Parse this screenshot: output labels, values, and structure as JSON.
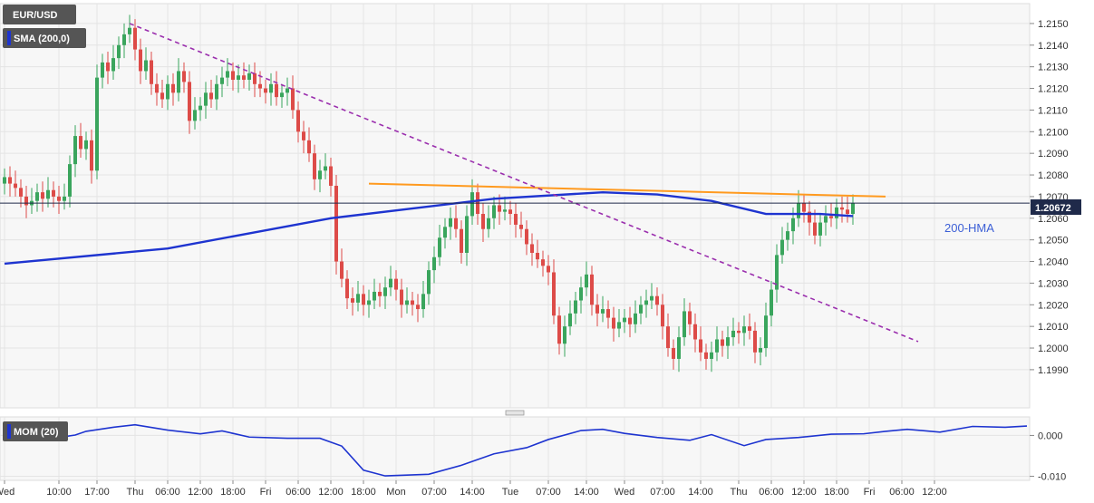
{
  "chart_data": [
    {
      "type": "candlestick",
      "symbol": "EUR/USD",
      "indicator_label": "SMA (200,0)",
      "current_price": "1.20672",
      "annotation": "200-HMA",
      "ylim": [
        1.1982,
        1.2155
      ],
      "y_ticks": [
        "1.2150",
        "1.2140",
        "1.2130",
        "1.2120",
        "1.2110",
        "1.2100",
        "1.2090",
        "1.2080",
        "1.2070",
        "1.2060",
        "1.2050",
        "1.2040",
        "1.2030",
        "1.2020",
        "1.2010",
        "1.2000",
        "1.1990"
      ],
      "x_tick_labels": [
        "Wed",
        "10:00",
        "17:00",
        "Thu",
        "06:00",
        "12:00",
        "18:00",
        "Fri",
        "06:00",
        "12:00",
        "18:00",
        "Mon",
        "07:00",
        "14:00",
        "Tue",
        "07:00",
        "14:00",
        "Wed",
        "07:00",
        "14:00",
        "Thu",
        "06:00",
        "12:00",
        "18:00",
        "Fri",
        "06:00",
        "12:00"
      ],
      "x_tick_positions_h": [
        0,
        10,
        17,
        24,
        30,
        36,
        42,
        48,
        54,
        60,
        66,
        72,
        79,
        86,
        93,
        100,
        107,
        114,
        121,
        128,
        135,
        141,
        147,
        153,
        159,
        165,
        171
      ],
      "candles_hourly_close": [
        [
          0,
          1.2079
        ],
        [
          1,
          1.2076
        ],
        [
          2,
          1.2074
        ],
        [
          3,
          1.207
        ],
        [
          4,
          1.2066
        ],
        [
          5,
          1.2068
        ],
        [
          6,
          1.2072
        ],
        [
          7,
          1.2069
        ],
        [
          8,
          1.2073
        ],
        [
          9,
          1.207
        ],
        [
          10,
          1.2068
        ],
        [
          11,
          1.207
        ],
        [
          12,
          1.2085
        ],
        [
          13,
          1.2098
        ],
        [
          14,
          1.2092
        ],
        [
          15,
          1.2096
        ],
        [
          16,
          1.2082
        ],
        [
          17,
          1.2125
        ],
        [
          18,
          1.2132
        ],
        [
          19,
          1.2128
        ],
        [
          20,
          1.2134
        ],
        [
          21,
          1.214
        ],
        [
          22,
          1.2145
        ],
        [
          23,
          1.2148
        ],
        [
          24,
          1.2138
        ],
        [
          25,
          1.2128
        ],
        [
          26,
          1.2133
        ],
        [
          27,
          1.2122
        ],
        [
          28,
          1.2118
        ],
        [
          29,
          1.2115
        ],
        [
          30,
          1.2122
        ],
        [
          31,
          1.2118
        ],
        [
          32,
          1.2128
        ],
        [
          33,
          1.2123
        ],
        [
          34,
          1.2105
        ],
        [
          35,
          1.211
        ],
        [
          36,
          1.2112
        ],
        [
          37,
          1.2118
        ],
        [
          38,
          1.2115
        ],
        [
          39,
          1.2122
        ],
        [
          40,
          1.2125
        ],
        [
          41,
          1.2128
        ],
        [
          42,
          1.2124
        ],
        [
          43,
          1.2126
        ],
        [
          44,
          1.2124
        ],
        [
          45,
          1.2127
        ],
        [
          46,
          1.2122
        ],
        [
          47,
          1.212
        ],
        [
          48,
          1.2118
        ],
        [
          49,
          1.2122
        ],
        [
          50,
          1.2116
        ],
        [
          51,
          1.2118
        ],
        [
          52,
          1.212
        ],
        [
          53,
          1.211
        ],
        [
          54,
          1.21
        ],
        [
          55,
          1.2096
        ],
        [
          56,
          1.209
        ],
        [
          57,
          1.2078
        ],
        [
          58,
          1.2082
        ],
        [
          59,
          1.2084
        ],
        [
          60,
          1.2075
        ],
        [
          61,
          1.204
        ],
        [
          62,
          1.2032
        ],
        [
          63,
          1.2023
        ],
        [
          64,
          1.2021
        ],
        [
          65,
          1.2025
        ],
        [
          66,
          1.202
        ],
        [
          67,
          1.2022
        ],
        [
          68,
          1.2026
        ],
        [
          69,
          1.2024
        ],
        [
          70,
          1.2028
        ],
        [
          71,
          1.2032
        ],
        [
          72,
          1.2027
        ],
        [
          73,
          1.202
        ],
        [
          74,
          1.2022
        ],
        [
          75,
          1.202
        ],
        [
          76,
          1.2018
        ],
        [
          77,
          1.2025
        ],
        [
          78,
          1.2036
        ],
        [
          79,
          1.2042
        ],
        [
          80,
          1.2051
        ],
        [
          81,
          1.2056
        ],
        [
          82,
          1.206
        ],
        [
          83,
          1.2055
        ],
        [
          84,
          1.2044
        ],
        [
          85,
          1.2061
        ],
        [
          86,
          1.2072
        ],
        [
          87,
          1.2062
        ],
        [
          88,
          1.2055
        ],
        [
          89,
          1.206
        ],
        [
          90,
          1.2066
        ],
        [
          91,
          1.2063
        ],
        [
          92,
          1.2064
        ],
        [
          93,
          1.2062
        ],
        [
          94,
          1.2057
        ],
        [
          95,
          1.2055
        ],
        [
          96,
          1.2048
        ],
        [
          97,
          1.2044
        ],
        [
          98,
          1.2041
        ],
        [
          99,
          1.2038
        ],
        [
          100,
          1.2035
        ],
        [
          101,
          1.2015
        ],
        [
          102,
          1.2002
        ],
        [
          103,
          1.201
        ],
        [
          104,
          1.2016
        ],
        [
          105,
          1.2022
        ],
        [
          106,
          1.2028
        ],
        [
          107,
          1.2034
        ],
        [
          108,
          1.202
        ],
        [
          109,
          1.2016
        ],
        [
          110,
          1.2018
        ],
        [
          111,
          1.2014
        ],
        [
          112,
          1.2009
        ],
        [
          113,
          1.2012
        ],
        [
          114,
          1.2014
        ],
        [
          115,
          1.2011
        ],
        [
          116,
          1.2016
        ],
        [
          117,
          1.202
        ],
        [
          118,
          1.2022
        ],
        [
          119,
          1.2024
        ],
        [
          120,
          1.202
        ],
        [
          121,
          1.201
        ],
        [
          122,
          1.2
        ],
        [
          123,
          1.1995
        ],
        [
          124,
          1.2005
        ],
        [
          125,
          1.2017
        ],
        [
          126,
          1.2011
        ],
        [
          127,
          1.2004
        ],
        [
          128,
          1.1998
        ],
        [
          129,
          1.1995
        ],
        [
          130,
          1.1998
        ],
        [
          131,
          1.2004
        ],
        [
          132,
          1.2001
        ],
        [
          133,
          1.2005
        ],
        [
          134,
          1.2008
        ],
        [
          135,
          1.2007
        ],
        [
          136,
          1.201
        ],
        [
          137,
          1.2008
        ],
        [
          138,
          1.1998
        ],
        [
          139,
          1.2
        ],
        [
          140,
          1.2015
        ],
        [
          141,
          1.2027
        ],
        [
          142,
          1.2043
        ],
        [
          143,
          1.205
        ],
        [
          144,
          1.2054
        ],
        [
          145,
          1.206
        ],
        [
          146,
          1.2067
        ],
        [
          147,
          1.2063
        ],
        [
          148,
          1.2058
        ],
        [
          149,
          1.2052
        ],
        [
          150,
          1.2058
        ],
        [
          151,
          1.2061
        ],
        [
          152,
          1.206
        ],
        [
          153,
          1.2065
        ],
        [
          154,
          1.2064
        ],
        [
          155,
          1.2062
        ],
        [
          156,
          1.2067
        ]
      ],
      "sma_200": [
        [
          0,
          1.2039
        ],
        [
          30,
          1.2046
        ],
        [
          60,
          1.206
        ],
        [
          90,
          1.2069
        ],
        [
          110,
          1.2072
        ],
        [
          120,
          1.2071
        ],
        [
          130,
          1.2068
        ],
        [
          140,
          1.2062
        ],
        [
          150,
          1.2062
        ],
        [
          156,
          1.2061
        ]
      ],
      "resistance_line": [
        [
          67,
          1.2076
        ],
        [
          162,
          1.207
        ]
      ],
      "downtrend_line": [
        [
          23,
          1.215
        ],
        [
          168,
          1.2003
        ]
      ],
      "momentum": {
        "label": "MOM (20)",
        "ylim": [
          -0.0101,
          0.0032
        ],
        "y_ticks": [
          "0.000",
          "-0.010"
        ],
        "values": [
          [
            0,
            0.0002
          ],
          [
            6,
            -0.0008
          ],
          [
            10,
            -0.0005
          ],
          [
            13,
            0.0001
          ],
          [
            15,
            0.001
          ],
          [
            20,
            0.002
          ],
          [
            24,
            0.0026
          ],
          [
            30,
            0.0013
          ],
          [
            36,
            0.0004
          ],
          [
            40,
            0.0011
          ],
          [
            45,
            -0.0004
          ],
          [
            52,
            -0.0007
          ],
          [
            58,
            -0.0007
          ],
          [
            62,
            -0.0026
          ],
          [
            66,
            -0.0085
          ],
          [
            70,
            -0.0099
          ],
          [
            78,
            -0.0095
          ],
          [
            84,
            -0.0073
          ],
          [
            90,
            -0.0045
          ],
          [
            96,
            -0.003
          ],
          [
            100,
            -0.001
          ],
          [
            106,
            0.0012
          ],
          [
            110,
            0.0015
          ],
          [
            114,
            0.0005
          ],
          [
            120,
            -0.0005
          ],
          [
            126,
            -0.0012
          ],
          [
            130,
            0.0002
          ],
          [
            136,
            -0.0025
          ],
          [
            140,
            -0.001
          ],
          [
            146,
            -0.0005
          ],
          [
            152,
            0.0003
          ],
          [
            158,
            0.0004
          ],
          [
            162,
            0.001
          ],
          [
            166,
            0.0015
          ],
          [
            172,
            0.0008
          ],
          [
            178,
            0.0022
          ],
          [
            184,
            0.002
          ],
          [
            188,
            0.0023
          ]
        ]
      }
    }
  ]
}
